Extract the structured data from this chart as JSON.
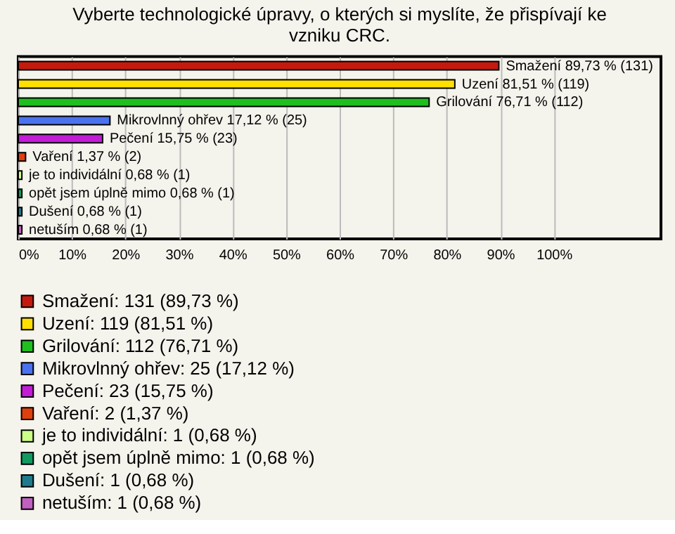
{
  "chart_data": {
    "type": "bar",
    "orientation": "horizontal",
    "title": [
      "Vyberte technologické úpravy, o kterých si myslíte, že přispívají ke",
      "vzniku CRC."
    ],
    "categories": [
      null,
      null,
      null,
      null,
      null,
      null,
      null,
      null,
      null,
      null
    ],
    "series": [
      {
        "name": "Smažení: 131 (89,73 %)",
        "color": "#c41a0e",
        "values": [
          89.73,
          null,
          null,
          null,
          null,
          null,
          null,
          null,
          null,
          null
        ],
        "value_labels": [
          "Smažení 89,73 % (131)",
          null,
          null,
          null,
          null,
          null,
          null,
          null,
          null,
          null
        ]
      },
      {
        "name": "Uzení: 119 (81,51 %)",
        "color": "#ffe000",
        "values": [
          null,
          81.51,
          null,
          null,
          null,
          null,
          null,
          null,
          null,
          null
        ],
        "value_labels": [
          null,
          "Uzení 81,51 % (119)",
          null,
          null,
          null,
          null,
          null,
          null,
          null,
          null
        ]
      },
      {
        "name": "Grilování: 112 (76,71 %)",
        "color": "#1fbf1f",
        "values": [
          null,
          null,
          76.71,
          null,
          null,
          null,
          null,
          null,
          null,
          null
        ],
        "value_labels": [
          null,
          null,
          "Grilování 76,71 % (112)",
          null,
          null,
          null,
          null,
          null,
          null,
          null
        ]
      },
      {
        "name": "Mikrovlnný ohřev: 25 (17,12 %)",
        "color": "#4a72ee",
        "values": [
          null,
          null,
          null,
          17.12,
          null,
          null,
          null,
          null,
          null,
          null
        ],
        "value_labels": [
          null,
          null,
          null,
          "Mikrovlnný ohřev 17,12 % (25)",
          null,
          null,
          null,
          null,
          null,
          null
        ]
      },
      {
        "name": "Pečení: 23 (15,75 %)",
        "color": "#c21cd6",
        "values": [
          null,
          null,
          null,
          null,
          15.75,
          null,
          null,
          null,
          null,
          null
        ],
        "value_labels": [
          null,
          null,
          null,
          null,
          "Pečení 15,75 % (23)",
          null,
          null,
          null,
          null,
          null
        ]
      },
      {
        "name": "Vaření: 2 (1,37 %)",
        "color": "#e0400e",
        "values": [
          null,
          null,
          null,
          null,
          null,
          1.37,
          null,
          null,
          null,
          null
        ],
        "value_labels": [
          null,
          null,
          null,
          null,
          null,
          "Vaření 1,37 % (2)",
          null,
          null,
          null,
          null
        ]
      },
      {
        "name": "je to individální: 1 (0,68 %)",
        "color": "#ccff88",
        "values": [
          null,
          null,
          null,
          null,
          null,
          null,
          0.68,
          null,
          null,
          null
        ],
        "value_labels": [
          null,
          null,
          null,
          null,
          null,
          null,
          "je to individální 0,68 % (1)",
          null,
          null,
          null
        ]
      },
      {
        "name": "opět jsem úplně mimo: 1 (0,68 %)",
        "color": "#119960",
        "values": [
          null,
          null,
          null,
          null,
          null,
          null,
          null,
          0.68,
          null,
          null
        ],
        "value_labels": [
          null,
          null,
          null,
          null,
          null,
          null,
          null,
          "opět jsem úplně mimo 0,68 % (1)",
          null,
          null
        ]
      },
      {
        "name": "Dušení: 1 (0,68 %)",
        "color": "#1f7a8c",
        "values": [
          null,
          null,
          null,
          null,
          null,
          null,
          null,
          null,
          0.68,
          null
        ],
        "value_labels": [
          null,
          null,
          null,
          null,
          null,
          null,
          null,
          null,
          "Dušení 0,68 % (1)",
          null
        ]
      },
      {
        "name": "netuším: 1 (0,68 %)",
        "color": "#c060c0",
        "values": [
          null,
          null,
          null,
          null,
          null,
          null,
          null,
          null,
          null,
          0.68
        ],
        "value_labels": [
          null,
          null,
          null,
          null,
          null,
          null,
          null,
          null,
          null,
          "netuším 0,68 % (1)"
        ]
      }
    ],
    "xlim": [
      0,
      120
    ],
    "xticks": [
      {
        "value": 0,
        "label": "0%"
      },
      {
        "value": 10,
        "label": "10%"
      },
      {
        "value": 20,
        "label": "20%"
      },
      {
        "value": 30,
        "label": "30%"
      },
      {
        "value": 40,
        "label": "40%"
      },
      {
        "value": 50,
        "label": "50%"
      },
      {
        "value": 60,
        "label": "60%"
      },
      {
        "value": 70,
        "label": "70%"
      },
      {
        "value": 80,
        "label": "80%"
      },
      {
        "value": 90,
        "label": "90%"
      },
      {
        "value": 100,
        "label": "100%"
      }
    ],
    "grid": "x",
    "tick_labels": "x",
    "legend": "bottom"
  }
}
